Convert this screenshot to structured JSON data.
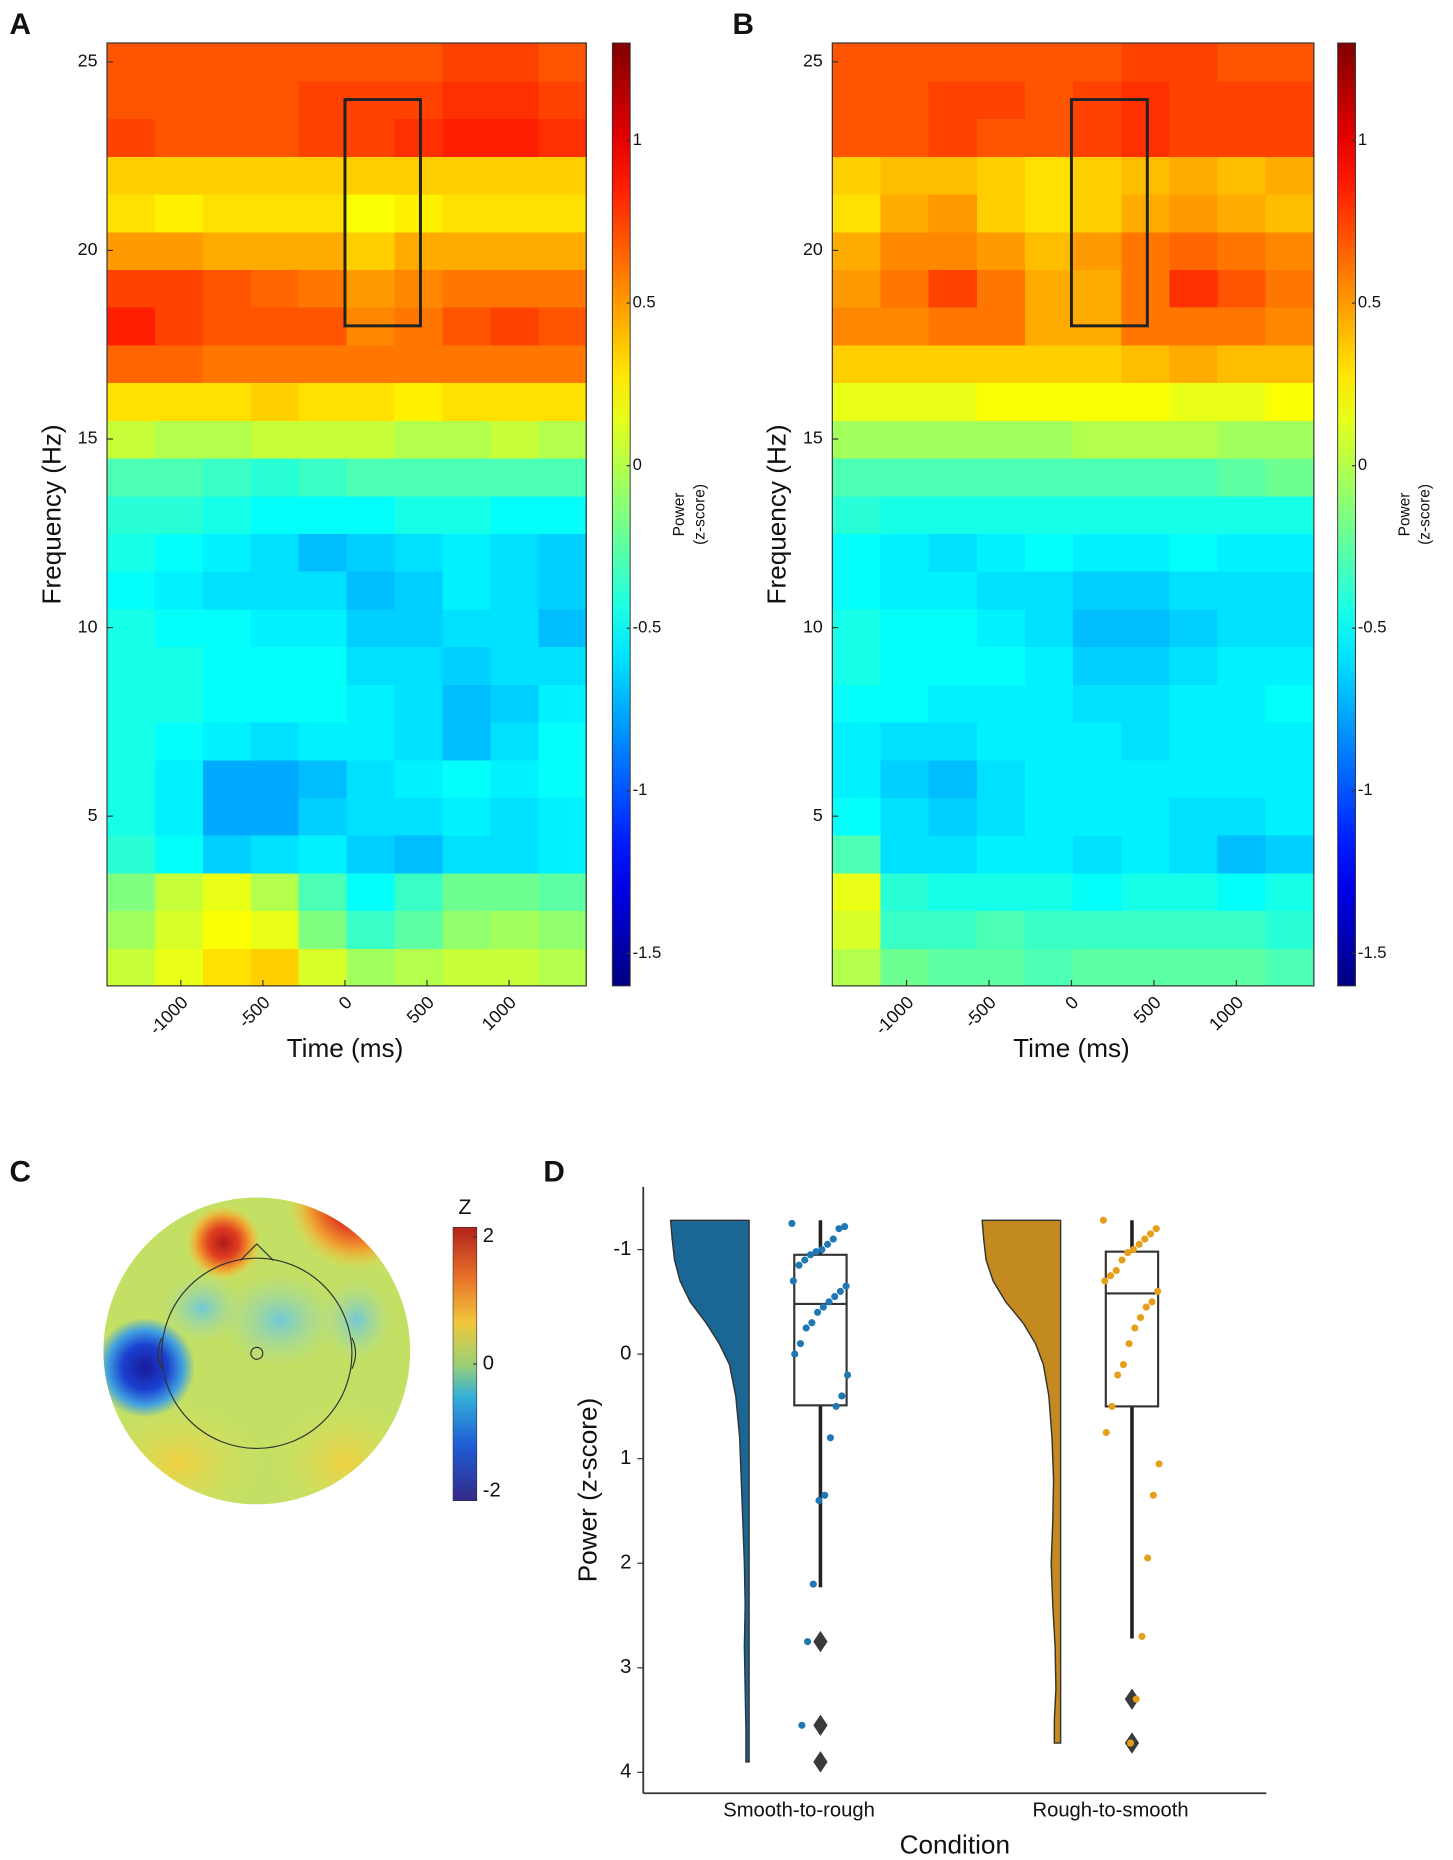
{
  "chart_data": [
    {
      "type": "heatmap",
      "label": "A",
      "xlabel": "Time (ms)",
      "ylabel": "Frequency (Hz)",
      "colorbar_label": [
        "Power",
        "(z-score)"
      ],
      "xlim": [
        -1450,
        1470
      ],
      "ylim": [
        0.5,
        25.5
      ],
      "xticks": [
        -1000,
        -500,
        0,
        500,
        1000
      ],
      "yticks": [
        5,
        10,
        15,
        20,
        25
      ],
      "clim": [
        -1.6,
        1.3
      ],
      "cticks": [
        -1.5,
        -1,
        -0.5,
        0,
        0.5,
        1
      ],
      "colormap": "jet",
      "xbins": [
        -1450,
        -1158,
        -866,
        -574,
        -282,
        10,
        302,
        594,
        886,
        1178,
        1470
      ],
      "ybins": [
        0.5,
        1.5,
        2.5,
        3.5,
        4.5,
        5.5,
        6.5,
        7.5,
        8.5,
        9.5,
        10.5,
        11.5,
        12.5,
        13.5,
        14.5,
        15.5,
        16.5,
        17.5,
        18.5,
        19.5,
        20.5,
        21.5,
        22.5,
        23.5,
        24.5,
        25.5
      ],
      "highlight": {
        "x": [
          0,
          460
        ],
        "y": [
          18,
          24
        ]
      },
      "z": [
        [
          0.05,
          0.15,
          0.3,
          0.35,
          0.1,
          -0.05,
          0.0,
          0.05,
          0.05,
          0.0
        ],
        [
          -0.05,
          0.1,
          0.2,
          0.15,
          -0.15,
          -0.35,
          -0.25,
          -0.1,
          -0.05,
          -0.1
        ],
        [
          -0.15,
          0.05,
          0.15,
          0.0,
          -0.3,
          -0.5,
          -0.35,
          -0.2,
          -0.2,
          -0.25
        ],
        [
          -0.4,
          -0.5,
          -0.65,
          -0.6,
          -0.55,
          -0.65,
          -0.7,
          -0.6,
          -0.6,
          -0.55
        ],
        [
          -0.45,
          -0.55,
          -0.75,
          -0.75,
          -0.65,
          -0.6,
          -0.6,
          -0.55,
          -0.6,
          -0.55
        ],
        [
          -0.45,
          -0.55,
          -0.75,
          -0.75,
          -0.7,
          -0.6,
          -0.55,
          -0.5,
          -0.55,
          -0.5
        ],
        [
          -0.45,
          -0.5,
          -0.55,
          -0.6,
          -0.55,
          -0.55,
          -0.6,
          -0.7,
          -0.6,
          -0.5
        ],
        [
          -0.45,
          -0.45,
          -0.5,
          -0.5,
          -0.5,
          -0.55,
          -0.6,
          -0.7,
          -0.65,
          -0.55
        ],
        [
          -0.45,
          -0.45,
          -0.5,
          -0.5,
          -0.5,
          -0.6,
          -0.6,
          -0.65,
          -0.6,
          -0.6
        ],
        [
          -0.45,
          -0.5,
          -0.5,
          -0.55,
          -0.55,
          -0.65,
          -0.65,
          -0.6,
          -0.6,
          -0.7
        ],
        [
          -0.5,
          -0.55,
          -0.6,
          -0.6,
          -0.6,
          -0.7,
          -0.65,
          -0.55,
          -0.6,
          -0.65
        ],
        [
          -0.45,
          -0.5,
          -0.55,
          -0.6,
          -0.7,
          -0.65,
          -0.6,
          -0.55,
          -0.6,
          -0.65
        ],
        [
          -0.4,
          -0.4,
          -0.45,
          -0.5,
          -0.5,
          -0.5,
          -0.45,
          -0.45,
          -0.5,
          -0.5
        ],
        [
          -0.3,
          -0.3,
          -0.35,
          -0.4,
          -0.35,
          -0.3,
          -0.3,
          -0.3,
          -0.3,
          -0.3
        ],
        [
          0.05,
          0.0,
          0.0,
          0.05,
          0.05,
          0.05,
          0.0,
          0.0,
          0.05,
          0.0
        ],
        [
          0.3,
          0.3,
          0.3,
          0.35,
          0.3,
          0.3,
          0.25,
          0.3,
          0.3,
          0.3
        ],
        [
          0.65,
          0.65,
          0.6,
          0.6,
          0.6,
          0.6,
          0.6,
          0.6,
          0.6,
          0.6
        ],
        [
          0.85,
          0.75,
          0.7,
          0.7,
          0.7,
          0.55,
          0.6,
          0.7,
          0.75,
          0.7
        ],
        [
          0.75,
          0.75,
          0.7,
          0.65,
          0.6,
          0.5,
          0.55,
          0.6,
          0.6,
          0.6
        ],
        [
          0.5,
          0.5,
          0.45,
          0.45,
          0.45,
          0.35,
          0.45,
          0.45,
          0.45,
          0.45
        ],
        [
          0.3,
          0.25,
          0.3,
          0.3,
          0.3,
          0.2,
          0.25,
          0.3,
          0.3,
          0.3
        ],
        [
          0.35,
          0.35,
          0.35,
          0.35,
          0.35,
          0.35,
          0.35,
          0.35,
          0.35,
          0.35
        ],
        [
          0.75,
          0.7,
          0.7,
          0.7,
          0.75,
          0.75,
          0.8,
          0.85,
          0.85,
          0.8
        ],
        [
          0.7,
          0.7,
          0.7,
          0.7,
          0.75,
          0.75,
          0.75,
          0.8,
          0.8,
          0.75
        ],
        [
          0.7,
          0.7,
          0.7,
          0.7,
          0.7,
          0.7,
          0.7,
          0.75,
          0.75,
          0.7
        ]
      ]
    },
    {
      "type": "heatmap",
      "label": "B",
      "xlabel": "Time (ms)",
      "ylabel": "Frequency (Hz)",
      "colorbar_label": [
        "Power",
        "(z-score)"
      ],
      "xlim": [
        -1450,
        1470
      ],
      "ylim": [
        0.5,
        25.5
      ],
      "xticks": [
        -1000,
        -500,
        0,
        500,
        1000
      ],
      "yticks": [
        5,
        10,
        15,
        20,
        25
      ],
      "clim": [
        -1.6,
        1.3
      ],
      "cticks": [
        -1.5,
        -1,
        -0.5,
        0,
        0.5,
        1
      ],
      "colormap": "jet",
      "xbins": [
        -1450,
        -1158,
        -866,
        -574,
        -282,
        10,
        302,
        594,
        886,
        1178,
        1470
      ],
      "ybins": [
        0.5,
        1.5,
        2.5,
        3.5,
        4.5,
        5.5,
        6.5,
        7.5,
        8.5,
        9.5,
        10.5,
        11.5,
        12.5,
        13.5,
        14.5,
        15.5,
        16.5,
        17.5,
        18.5,
        19.5,
        20.5,
        21.5,
        22.5,
        23.5,
        24.5,
        25.5
      ],
      "highlight": {
        "x": [
          0,
          460
        ],
        "y": [
          18,
          24
        ]
      },
      "z": [
        [
          0.0,
          -0.2,
          -0.25,
          -0.25,
          -0.3,
          -0.25,
          -0.25,
          -0.25,
          -0.25,
          -0.3
        ],
        [
          0.1,
          -0.35,
          -0.35,
          -0.3,
          -0.35,
          -0.35,
          -0.35,
          -0.35,
          -0.35,
          -0.4
        ],
        [
          0.15,
          -0.4,
          -0.45,
          -0.45,
          -0.45,
          -0.5,
          -0.45,
          -0.45,
          -0.5,
          -0.45
        ],
        [
          -0.3,
          -0.6,
          -0.6,
          -0.55,
          -0.55,
          -0.6,
          -0.55,
          -0.6,
          -0.7,
          -0.65
        ],
        [
          -0.5,
          -0.6,
          -0.65,
          -0.6,
          -0.55,
          -0.55,
          -0.55,
          -0.6,
          -0.6,
          -0.55
        ],
        [
          -0.55,
          -0.65,
          -0.7,
          -0.6,
          -0.55,
          -0.55,
          -0.55,
          -0.55,
          -0.55,
          -0.55
        ],
        [
          -0.55,
          -0.6,
          -0.6,
          -0.55,
          -0.55,
          -0.55,
          -0.6,
          -0.55,
          -0.55,
          -0.55
        ],
        [
          -0.5,
          -0.5,
          -0.55,
          -0.55,
          -0.55,
          -0.6,
          -0.6,
          -0.55,
          -0.55,
          -0.5
        ],
        [
          -0.45,
          -0.5,
          -0.5,
          -0.5,
          -0.55,
          -0.65,
          -0.65,
          -0.6,
          -0.55,
          -0.55
        ],
        [
          -0.45,
          -0.5,
          -0.5,
          -0.55,
          -0.6,
          -0.7,
          -0.7,
          -0.65,
          -0.6,
          -0.6
        ],
        [
          -0.5,
          -0.55,
          -0.55,
          -0.6,
          -0.6,
          -0.65,
          -0.65,
          -0.6,
          -0.6,
          -0.6
        ],
        [
          -0.5,
          -0.55,
          -0.6,
          -0.55,
          -0.5,
          -0.55,
          -0.55,
          -0.5,
          -0.55,
          -0.55
        ],
        [
          -0.4,
          -0.45,
          -0.45,
          -0.45,
          -0.45,
          -0.45,
          -0.45,
          -0.45,
          -0.45,
          -0.45
        ],
        [
          -0.3,
          -0.3,
          -0.3,
          -0.3,
          -0.3,
          -0.3,
          -0.3,
          -0.3,
          -0.25,
          -0.2
        ],
        [
          -0.05,
          -0.05,
          -0.05,
          -0.05,
          -0.05,
          0.0,
          0.0,
          0.0,
          -0.05,
          -0.05
        ],
        [
          0.15,
          0.15,
          0.15,
          0.2,
          0.2,
          0.2,
          0.2,
          0.15,
          0.15,
          0.2
        ],
        [
          0.35,
          0.35,
          0.35,
          0.35,
          0.35,
          0.35,
          0.4,
          0.45,
          0.4,
          0.4
        ],
        [
          0.55,
          0.55,
          0.6,
          0.6,
          0.45,
          0.45,
          0.6,
          0.6,
          0.6,
          0.55
        ],
        [
          0.5,
          0.6,
          0.75,
          0.6,
          0.45,
          0.45,
          0.6,
          0.8,
          0.7,
          0.6
        ],
        [
          0.45,
          0.55,
          0.55,
          0.5,
          0.4,
          0.5,
          0.6,
          0.65,
          0.6,
          0.55
        ],
        [
          0.3,
          0.45,
          0.5,
          0.35,
          0.3,
          0.35,
          0.45,
          0.5,
          0.45,
          0.4
        ],
        [
          0.35,
          0.4,
          0.4,
          0.35,
          0.3,
          0.35,
          0.4,
          0.45,
          0.4,
          0.45
        ],
        [
          0.7,
          0.7,
          0.75,
          0.7,
          0.7,
          0.75,
          0.8,
          0.75,
          0.75,
          0.75
        ],
        [
          0.7,
          0.7,
          0.75,
          0.75,
          0.7,
          0.75,
          0.8,
          0.75,
          0.75,
          0.75
        ],
        [
          0.7,
          0.7,
          0.7,
          0.7,
          0.7,
          0.7,
          0.75,
          0.75,
          0.7,
          0.7
        ]
      ]
    },
    {
      "type": "topomap",
      "label": "C",
      "colorbar_label": "Z",
      "clim": [
        -2.15,
        2.15
      ],
      "cticks": [
        -2,
        0,
        2
      ]
    },
    {
      "type": "raincloud",
      "label": "D",
      "xlabel": "Condition",
      "ylabel": "Power (z-score)",
      "categories": [
        "Smooth-to-rough",
        "Rough-to-smooth"
      ],
      "ylim": [
        -1.6,
        4.2
      ],
      "y_inverted": true,
      "yticks": [
        -1,
        0,
        1,
        2,
        3,
        4
      ],
      "groups": [
        {
          "color": "#1a6796",
          "point_color": "#1f77b4",
          "box": {
            "whislo": -1.28,
            "q1": -0.95,
            "median": -0.48,
            "q3": 0.49,
            "whishi": 2.23
          },
          "outliers": [
            2.75,
            3.55,
            3.9
          ],
          "points": [
            -1.25,
            -1.22,
            -1.2,
            -1.1,
            -1.05,
            -1.0,
            -0.98,
            -0.95,
            -0.9,
            -0.85,
            -0.7,
            -0.65,
            -0.6,
            -0.55,
            -0.5,
            -0.45,
            -0.4,
            -0.3,
            -0.25,
            -0.1,
            0.0,
            0.2,
            0.4,
            0.5,
            0.8,
            1.35,
            1.4,
            2.2,
            2.75,
            3.55
          ],
          "density": {
            "y": [
              -1.28,
              -1.1,
              -0.9,
              -0.7,
              -0.5,
              -0.3,
              -0.1,
              0.1,
              0.4,
              0.8,
              1.2,
              1.6,
              2.0,
              2.4,
              2.8,
              3.2,
              3.6,
              3.9
            ],
            "values": [
              1.0,
              0.98,
              0.95,
              0.88,
              0.75,
              0.55,
              0.38,
              0.25,
              0.17,
              0.12,
              0.1,
              0.08,
              0.06,
              0.05,
              0.06,
              0.05,
              0.04,
              0.04
            ]
          }
        },
        {
          "color": "#c38b1f",
          "point_color": "#e69f1a",
          "box": {
            "whislo": -1.28,
            "q1": -0.98,
            "median": -0.58,
            "q3": 0.5,
            "whishi": 2.72
          },
          "outliers": [
            3.3,
            3.72
          ],
          "points": [
            -1.28,
            -1.2,
            -1.15,
            -1.1,
            -1.05,
            -1.0,
            -0.97,
            -0.9,
            -0.8,
            -0.75,
            -0.7,
            -0.6,
            -0.5,
            -0.45,
            -0.35,
            -0.25,
            -0.1,
            0.1,
            0.2,
            0.5,
            0.75,
            1.05,
            1.35,
            1.95,
            2.7,
            3.3,
            3.72
          ],
          "density": {
            "y": [
              -1.28,
              -1.1,
              -0.9,
              -0.7,
              -0.5,
              -0.3,
              -0.1,
              0.1,
              0.4,
              0.8,
              1.2,
              1.6,
              2.0,
              2.4,
              2.8,
              3.2,
              3.5,
              3.72
            ],
            "values": [
              1.0,
              0.98,
              0.95,
              0.86,
              0.7,
              0.48,
              0.32,
              0.22,
              0.15,
              0.11,
              0.09,
              0.1,
              0.12,
              0.1,
              0.07,
              0.06,
              0.08,
              0.08
            ]
          }
        }
      ]
    }
  ]
}
